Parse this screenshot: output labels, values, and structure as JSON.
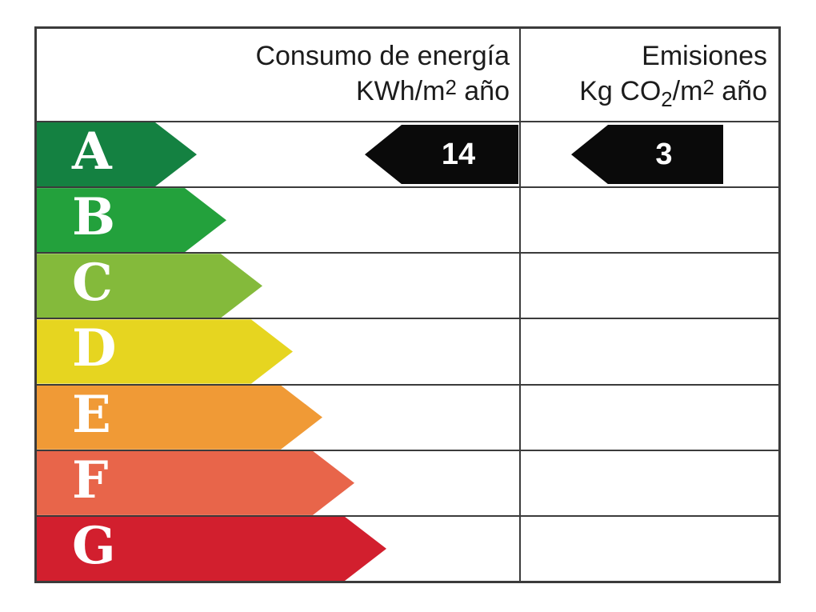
{
  "header": {
    "consumption_line1": "Consumo de energía",
    "consumption_line2_pre": "KWh/m",
    "consumption_line2_sup": "2",
    "consumption_line2_post": " año",
    "emissions_line1": "Emisiones",
    "emissions_line2_pre": "Kg CO",
    "emissions_line2_sub": "2",
    "emissions_line2_mid": "/m",
    "emissions_line2_sup": "2",
    "emissions_line2_post": " año"
  },
  "ratings": [
    {
      "letter": "A",
      "color": "#148141",
      "arrow_width": 200,
      "consumption": "14",
      "emissions": "3"
    },
    {
      "letter": "B",
      "color": "#23a13c",
      "arrow_width": 237
    },
    {
      "letter": "C",
      "color": "#84ba3b",
      "arrow_width": 282
    },
    {
      "letter": "D",
      "color": "#e6d520",
      "arrow_width": 320
    },
    {
      "letter": "E",
      "color": "#f09a36",
      "arrow_width": 357
    },
    {
      "letter": "F",
      "color": "#e8654a",
      "arrow_width": 397
    },
    {
      "letter": "G",
      "color": "#d21f2e",
      "arrow_width": 437
    }
  ],
  "colors": {
    "border": "#3b3b3b",
    "indicator_arrow": "#0a0a0a",
    "header_text": "#1c1c1c",
    "background": "#ffffff"
  },
  "chart_data": {
    "type": "table",
    "title": "Etiqueta de eficiencia energética",
    "columns": [
      "Consumo de energía KWh/m2 año",
      "Emisiones Kg CO2/m2 año"
    ],
    "categories": [
      "A",
      "B",
      "C",
      "D",
      "E",
      "F",
      "G"
    ],
    "category_colors": [
      "#148141",
      "#23a13c",
      "#84ba3b",
      "#e6d520",
      "#f09a36",
      "#e8654a",
      "#d21f2e"
    ],
    "indicated_rating": "A",
    "consumption_kwh_m2_year": 14,
    "emissions_kg_co2_m2_year": 3
  }
}
